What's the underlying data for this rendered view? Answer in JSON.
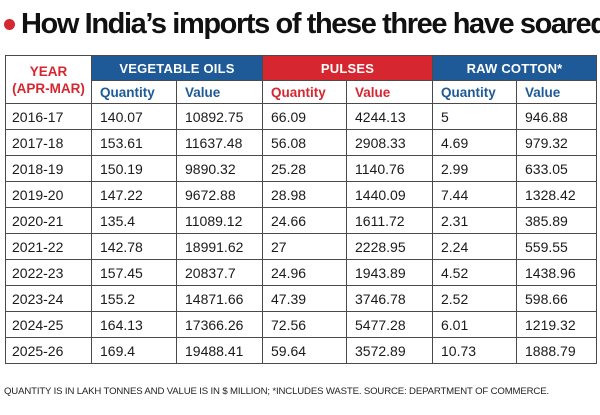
{
  "title": "How India’s imports of these three have soared",
  "table": {
    "year_header_line1": "YEAR",
    "year_header_line2": "(APR-MAR)",
    "groups": [
      {
        "label": "VEGETABLE OILS",
        "color": "#1e5a97"
      },
      {
        "label": "PULSES",
        "color": "#d6262f"
      },
      {
        "label": "RAW COTTON*",
        "color": "#1e5a97"
      }
    ],
    "sub_headers": [
      "Quantity",
      "Value",
      "Quantity",
      "Value",
      "Quantity",
      "Value"
    ],
    "rows": [
      [
        "2016-17",
        "140.07",
        "10892.75",
        "66.09",
        "4244.13",
        "5",
        "946.88"
      ],
      [
        "2017-18",
        "153.61",
        "11637.48",
        "56.08",
        "2908.33",
        "4.69",
        "979.32"
      ],
      [
        "2018-19",
        "150.19",
        "9890.32",
        "25.28",
        "1140.76",
        "2.99",
        "633.05"
      ],
      [
        "2019-20",
        "147.22",
        "9672.88",
        "28.98",
        "1440.09",
        "7.44",
        "1328.42"
      ],
      [
        "2020-21",
        "135.4",
        "11089.12",
        "24.66",
        "1611.72",
        "2.31",
        "385.89"
      ],
      [
        "2021-22",
        "142.78",
        "18991.62",
        "27",
        "2228.95",
        "2.24",
        "559.55"
      ],
      [
        "2022-23",
        "157.45",
        "20837.7",
        "24.96",
        "1943.89",
        "4.52",
        "1438.96"
      ],
      [
        "2023-24",
        "155.2",
        "14871.66",
        "47.39",
        "3746.78",
        "2.52",
        "598.66"
      ],
      [
        "2024-25",
        "164.13",
        "17366.26",
        "72.56",
        "5477.28",
        "6.01",
        "1219.32"
      ],
      [
        "2025-26",
        "169.4",
        "19488.41",
        "59.64",
        "3572.89",
        "10.73",
        "1888.79"
      ]
    ]
  },
  "footnote": "QUANTITY IS IN LAKH TONNES AND VALUE IS IN $ MILLION; *INCLUDES WASTE. SOURCE: DEPARTMENT OF COMMERCE."
}
